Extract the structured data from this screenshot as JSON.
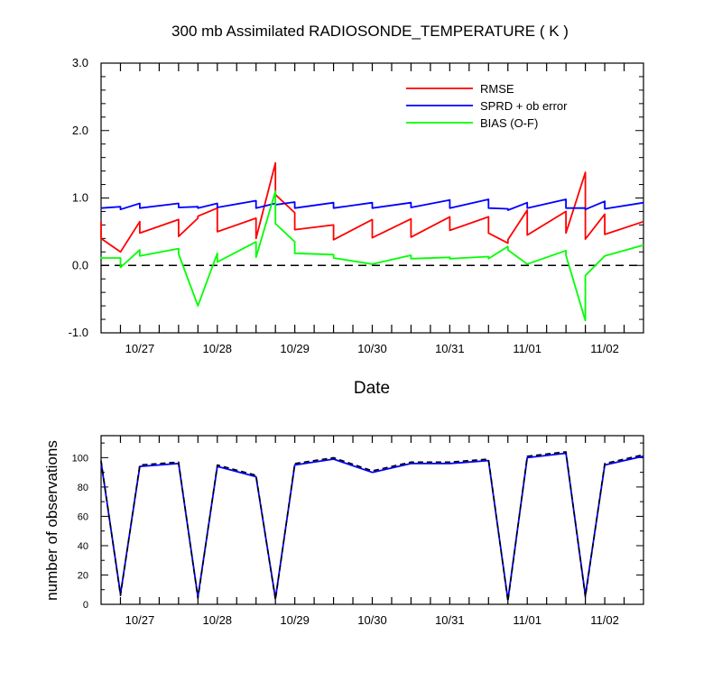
{
  "chart_data": [
    {
      "type": "line",
      "title": "300 mb Assimilated RADIOSONDE_TEMPERATURE ( K )",
      "xlabel": "Date",
      "ylabel": "",
      "xlim": [
        0,
        14
      ],
      "ylim": [
        -1.0,
        3.0
      ],
      "yticks": [
        -1.0,
        0.0,
        1.0,
        2.0,
        3.0
      ],
      "ytick_labels": [
        "-1.0",
        "0.0",
        "1.0",
        "2.0",
        "3.0"
      ],
      "xticks": [
        1,
        3,
        5,
        7,
        9,
        11,
        13
      ],
      "xtick_labels": [
        "10/27",
        "10/28",
        "10/29",
        "10/30",
        "10/31",
        "11/01",
        "11/02"
      ],
      "zero_line": true,
      "legend_position": "top-right",
      "series": [
        {
          "name": "RMSE",
          "color": "#ff0000",
          "points": [
            [
              0,
              0.65
            ],
            [
              0,
              0.4
            ],
            [
              0.5,
              0.2
            ],
            [
              1,
              0.65
            ],
            [
              1,
              0.48
            ],
            [
              2,
              0.68
            ],
            [
              2,
              0.43
            ],
            [
              2.5,
              0.7
            ],
            [
              2.5,
              0.73
            ],
            [
              3,
              0.85
            ],
            [
              3,
              0.5
            ],
            [
              4,
              0.7
            ],
            [
              4,
              0.4
            ],
            [
              4.5,
              1.52
            ],
            [
              4.5,
              1.05
            ],
            [
              5,
              0.78
            ],
            [
              5,
              0.53
            ],
            [
              6,
              0.6
            ],
            [
              6,
              0.38
            ],
            [
              7,
              0.68
            ],
            [
              7,
              0.41
            ],
            [
              8,
              0.69
            ],
            [
              8,
              0.42
            ],
            [
              9,
              0.72
            ],
            [
              9,
              0.52
            ],
            [
              10,
              0.72
            ],
            [
              10,
              0.48
            ],
            [
              10.5,
              0.33
            ],
            [
              10.5,
              0.38
            ],
            [
              11,
              0.82
            ],
            [
              11,
              0.45
            ],
            [
              12,
              0.8
            ],
            [
              12,
              0.48
            ],
            [
              12.5,
              1.38
            ],
            [
              12.5,
              0.39
            ],
            [
              13,
              0.76
            ],
            [
              13,
              0.46
            ],
            [
              14,
              0.65
            ]
          ]
        },
        {
          "name": "SPRD + ob error",
          "color": "#0000ff",
          "points": [
            [
              0,
              0.85
            ],
            [
              0.5,
              0.87
            ],
            [
              0.5,
              0.83
            ],
            [
              1,
              0.92
            ],
            [
              1,
              0.85
            ],
            [
              2,
              0.92
            ],
            [
              2,
              0.86
            ],
            [
              2.5,
              0.87
            ],
            [
              2.5,
              0.85
            ],
            [
              3,
              0.92
            ],
            [
              3,
              0.86
            ],
            [
              4,
              0.96
            ],
            [
              4,
              0.85
            ],
            [
              4.5,
              0.92
            ],
            [
              4.5,
              0.9
            ],
            [
              5,
              0.94
            ],
            [
              5,
              0.85
            ],
            [
              6,
              0.93
            ],
            [
              6,
              0.85
            ],
            [
              7,
              0.93
            ],
            [
              7,
              0.85
            ],
            [
              8,
              0.93
            ],
            [
              8,
              0.86
            ],
            [
              9,
              0.97
            ],
            [
              9,
              0.85
            ],
            [
              10,
              0.98
            ],
            [
              10,
              0.85
            ],
            [
              10.5,
              0.84
            ],
            [
              10.5,
              0.82
            ],
            [
              11,
              0.93
            ],
            [
              11,
              0.85
            ],
            [
              12,
              0.98
            ],
            [
              12,
              0.85
            ],
            [
              12.5,
              0.85
            ],
            [
              12.5,
              0.83
            ],
            [
              13,
              0.95
            ],
            [
              13,
              0.84
            ],
            [
              14,
              0.93
            ]
          ]
        },
        {
          "name": "BIAS (O-F)",
          "color": "#00ff00",
          "points": [
            [
              0,
              0.13
            ],
            [
              0,
              0.11
            ],
            [
              0.5,
              0.11
            ],
            [
              0.5,
              -0.03
            ],
            [
              1,
              0.23
            ],
            [
              1,
              0.14
            ],
            [
              2,
              0.25
            ],
            [
              2,
              0.17
            ],
            [
              2.5,
              -0.6
            ],
            [
              3,
              0.18
            ],
            [
              3,
              0.05
            ],
            [
              4,
              0.35
            ],
            [
              4,
              0.12
            ],
            [
              4.5,
              1.1
            ],
            [
              4.5,
              0.62
            ],
            [
              5,
              0.35
            ],
            [
              5,
              0.18
            ],
            [
              6,
              0.16
            ],
            [
              6,
              0.11
            ],
            [
              7,
              0.02
            ],
            [
              8,
              0.15
            ],
            [
              8,
              0.1
            ],
            [
              9,
              0.12
            ],
            [
              9,
              0.1
            ],
            [
              10,
              0.13
            ],
            [
              10,
              0.1
            ],
            [
              10.5,
              0.28
            ],
            [
              10.5,
              0.23
            ],
            [
              11,
              0.02
            ],
            [
              12,
              0.22
            ],
            [
              12,
              0.15
            ],
            [
              12.5,
              -0.82
            ],
            [
              12.5,
              -0.15
            ],
            [
              13,
              0.14
            ],
            [
              14,
              0.3
            ]
          ]
        }
      ]
    },
    {
      "type": "line",
      "title": "",
      "xlabel": "",
      "ylabel": "number of observations",
      "xlim": [
        0,
        14
      ],
      "ylim": [
        0,
        115
      ],
      "yticks": [
        0,
        20,
        40,
        60,
        80,
        100
      ],
      "ytick_labels": [
        "0",
        "20",
        "40",
        "60",
        "80",
        "100"
      ],
      "xticks": [
        1,
        3,
        5,
        7,
        9,
        11,
        13
      ],
      "xtick_labels": [
        "10/27",
        "10/28",
        "10/29",
        "10/30",
        "10/31",
        "11/01",
        "11/02"
      ],
      "series": [
        {
          "name": "solid",
          "color": "#0000ff",
          "dash": false,
          "points": [
            [
              0,
              97
            ],
            [
              0.5,
              7
            ],
            [
              1,
              94
            ],
            [
              2,
              96
            ],
            [
              2.5,
              5
            ],
            [
              3,
              94
            ],
            [
              4,
              87
            ],
            [
              4.5,
              4
            ],
            [
              5,
              95
            ],
            [
              6,
              99
            ],
            [
              7,
              90
            ],
            [
              8,
              96
            ],
            [
              9,
              96
            ],
            [
              10,
              98
            ],
            [
              10.5,
              3
            ],
            [
              11,
              100
            ],
            [
              12,
              103
            ],
            [
              12.5,
              6
            ],
            [
              13,
              95
            ],
            [
              14,
              101
            ]
          ]
        },
        {
          "name": "dashed",
          "color": "#000000",
          "dash": true,
          "points": [
            [
              0,
              98
            ],
            [
              0.5,
              6
            ],
            [
              1,
              95
            ],
            [
              2,
              97
            ],
            [
              2.5,
              4
            ],
            [
              3,
              95
            ],
            [
              4,
              88
            ],
            [
              4.5,
              3
            ],
            [
              5,
              96
            ],
            [
              6,
              100
            ],
            [
              7,
              91
            ],
            [
              8,
              97
            ],
            [
              9,
              97
            ],
            [
              10,
              99
            ],
            [
              10.5,
              2
            ],
            [
              11,
              101
            ],
            [
              12,
              104
            ],
            [
              12.5,
              5
            ],
            [
              13,
              96
            ],
            [
              14,
              102
            ]
          ]
        }
      ]
    }
  ]
}
